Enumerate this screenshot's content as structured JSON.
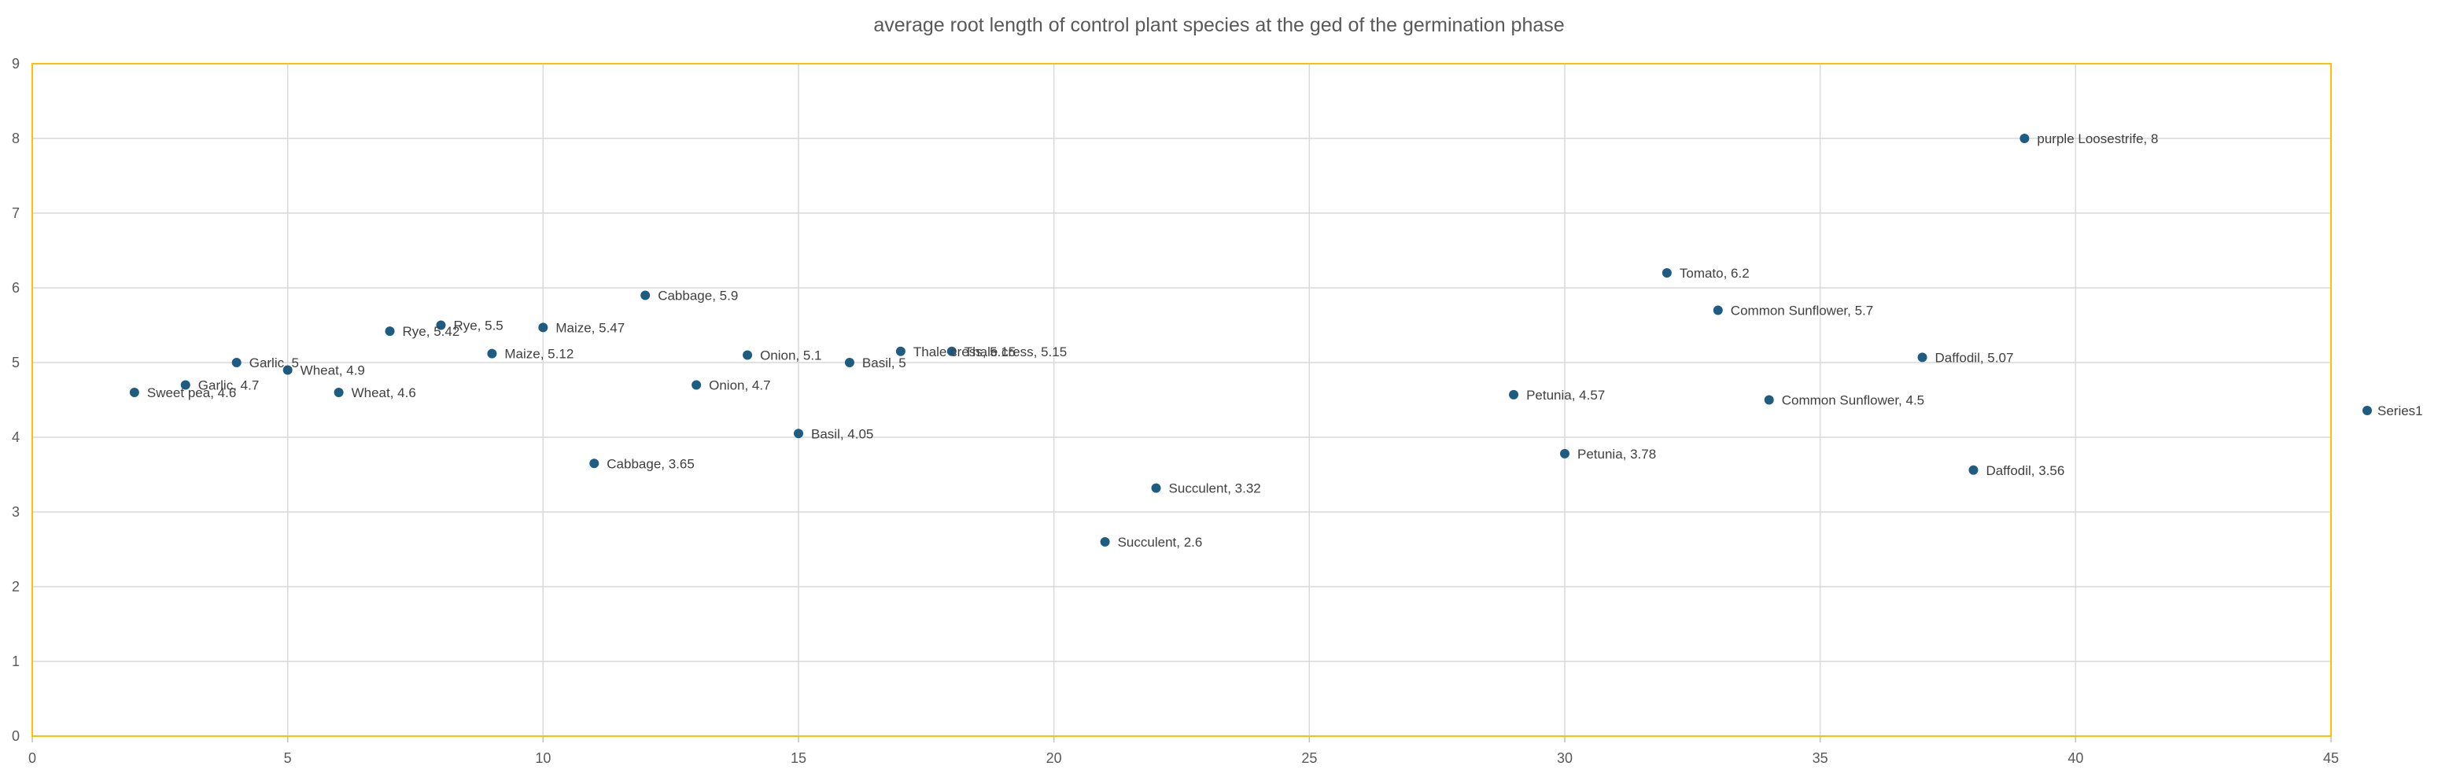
{
  "chart_data": {
    "type": "scatter",
    "title": "average root length of control plant species at the ged of the germination phase",
    "xlabel": "",
    "ylabel": "",
    "xlim": [
      0,
      45
    ],
    "ylim": [
      0,
      9
    ],
    "x_ticks": [
      0,
      5,
      10,
      15,
      20,
      25,
      30,
      35,
      40,
      45
    ],
    "y_ticks": [
      0,
      1,
      2,
      3,
      4,
      5,
      6,
      7,
      8,
      9
    ],
    "grid": true,
    "legend_position": "right",
    "colors": {
      "marker": "#1F5C82",
      "grid": "#D9D9D9",
      "plot_border": "#FFC000",
      "axis": "#BFBFBF"
    },
    "series": [
      {
        "name": "Series1",
        "points": [
          {
            "x": 2,
            "y": 4.6,
            "label": "Sweet pea, 4.6"
          },
          {
            "x": 3,
            "y": 4.7,
            "label": "Garlic, 4.7"
          },
          {
            "x": 4,
            "y": 5,
            "label": "Garlic, 5"
          },
          {
            "x": 5,
            "y": 4.9,
            "label": "Wheat, 4.9"
          },
          {
            "x": 6,
            "y": 4.6,
            "label": "Wheat, 4.6"
          },
          {
            "x": 7,
            "y": 5.42,
            "label": "Rye, 5.42"
          },
          {
            "x": 8,
            "y": 5.5,
            "label": "Rye, 5.5"
          },
          {
            "x": 9,
            "y": 5.12,
            "label": "Maize, 5.12"
          },
          {
            "x": 10,
            "y": 5.47,
            "label": "Maize, 5.47"
          },
          {
            "x": 11,
            "y": 3.65,
            "label": "Cabbage, 3.65"
          },
          {
            "x": 12,
            "y": 5.9,
            "label": "Cabbage, 5.9"
          },
          {
            "x": 13,
            "y": 4.7,
            "label": "Onion, 4.7"
          },
          {
            "x": 14,
            "y": 5.1,
            "label": "Onion, 5.1"
          },
          {
            "x": 15,
            "y": 4.05,
            "label": "Basil, 4.05"
          },
          {
            "x": 16,
            "y": 5,
            "label": "Basil, 5"
          },
          {
            "x": 17,
            "y": 5.15,
            "label": "Thale cress, 5.15"
          },
          {
            "x": 18,
            "y": 5.15,
            "label": "Thale cress, 5.15"
          },
          {
            "x": 21,
            "y": 2.6,
            "label": "Succulent, 2.6"
          },
          {
            "x": 22,
            "y": 3.32,
            "label": "Succulent, 3.32"
          },
          {
            "x": 29,
            "y": 4.57,
            "label": "Petunia, 4.57"
          },
          {
            "x": 30,
            "y": 3.78,
            "label": "Petunia, 3.78"
          },
          {
            "x": 32,
            "y": 6.2,
            "label": "Tomato, 6.2"
          },
          {
            "x": 33,
            "y": 5.7,
            "label": "Common Sunflower, 5.7"
          },
          {
            "x": 34,
            "y": 4.5,
            "label": "Common Sunflower, 4.5"
          },
          {
            "x": 37,
            "y": 5.07,
            "label": "Daffodil, 5.07"
          },
          {
            "x": 38,
            "y": 3.56,
            "label": "Daffodil, 3.56"
          },
          {
            "x": 39,
            "y": 8,
            "label": "purple Loosestrife, 8"
          }
        ]
      }
    ]
  }
}
